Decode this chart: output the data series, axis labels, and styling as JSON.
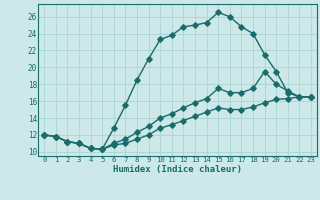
{
  "xlabel": "Humidex (Indice chaleur)",
  "bg_color": "#cce8e8",
  "line_color": "#1a6b6b",
  "grid_color": "#aad4d4",
  "xlim": [
    -0.5,
    23.5
  ],
  "ylim": [
    9.5,
    27.5
  ],
  "xticks": [
    0,
    1,
    2,
    3,
    4,
    5,
    6,
    7,
    8,
    9,
    10,
    11,
    12,
    13,
    14,
    15,
    16,
    17,
    18,
    19,
    20,
    21,
    22,
    23
  ],
  "yticks": [
    10,
    12,
    14,
    16,
    18,
    20,
    22,
    24,
    26
  ],
  "line1_x": [
    0,
    1,
    2,
    3,
    4,
    5,
    6,
    7,
    8,
    9,
    10,
    11,
    12,
    13,
    14,
    15,
    16,
    17,
    18,
    19,
    20,
    21,
    22,
    23
  ],
  "line1_y": [
    12,
    11.8,
    11.2,
    11,
    10.4,
    10.3,
    12.8,
    15.5,
    18.5,
    21,
    23.3,
    23.8,
    24.8,
    25,
    25.3,
    26.5,
    26,
    24.8,
    24,
    21.5,
    19.5,
    17,
    16.5,
    16.5
  ],
  "line2_x": [
    0,
    1,
    2,
    3,
    4,
    5,
    6,
    7,
    8,
    9,
    10,
    11,
    12,
    13,
    14,
    15,
    16,
    17,
    18,
    19,
    20,
    21,
    22,
    23
  ],
  "line2_y": [
    12,
    11.8,
    11.2,
    11,
    10.4,
    10.3,
    11,
    11.5,
    12.3,
    13,
    14,
    14.5,
    15.2,
    15.8,
    16.3,
    17.5,
    17,
    17,
    17.5,
    19.5,
    18,
    17.2,
    16.5,
    16.5
  ],
  "line3_x": [
    0,
    1,
    2,
    3,
    4,
    5,
    6,
    7,
    8,
    9,
    10,
    11,
    12,
    13,
    14,
    15,
    16,
    17,
    18,
    19,
    20,
    21,
    22,
    23
  ],
  "line3_y": [
    12,
    11.8,
    11.2,
    11,
    10.4,
    10.3,
    10.8,
    11,
    11.5,
    12,
    12.8,
    13.2,
    13.7,
    14.2,
    14.7,
    15.2,
    15,
    15,
    15.3,
    15.8,
    16.2,
    16.3,
    16.5,
    16.5
  ]
}
